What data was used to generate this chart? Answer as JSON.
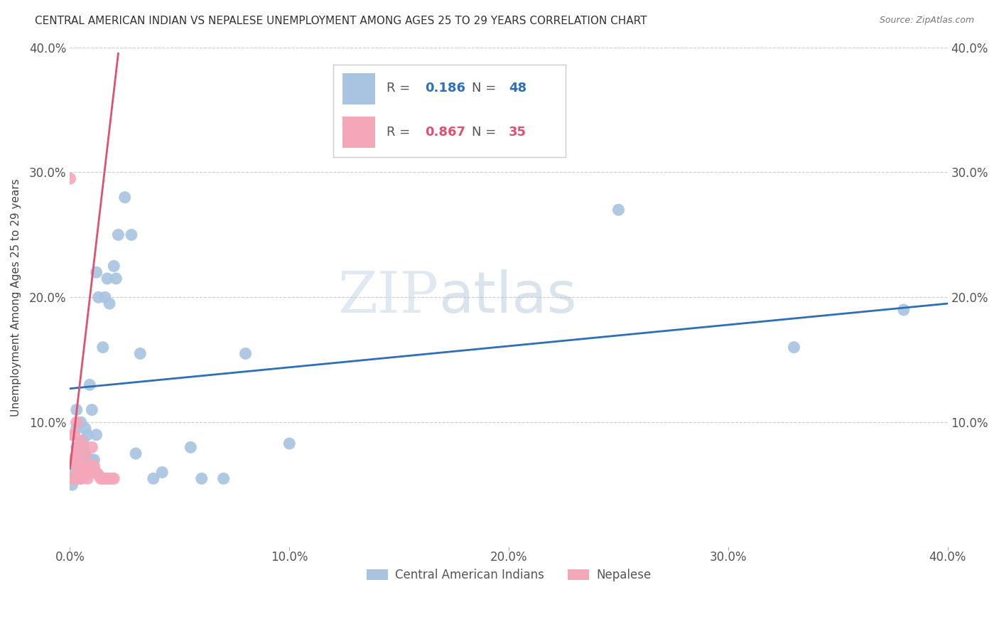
{
  "title": "CENTRAL AMERICAN INDIAN VS NEPALESE UNEMPLOYMENT AMONG AGES 25 TO 29 YEARS CORRELATION CHART",
  "source": "Source: ZipAtlas.com",
  "ylabel": "Unemployment Among Ages 25 to 29 years",
  "xlim": [
    0.0,
    0.4
  ],
  "ylim": [
    0.0,
    0.4
  ],
  "xticks": [
    0.0,
    0.1,
    0.2,
    0.3,
    0.4
  ],
  "yticks": [
    0.0,
    0.1,
    0.2,
    0.3,
    0.4
  ],
  "xticklabels": [
    "0.0%",
    "10.0%",
    "20.0%",
    "30.0%",
    "40.0%"
  ],
  "yticklabels": [
    "",
    "10.0%",
    "20.0%",
    "30.0%",
    "40.0%"
  ],
  "blue_R": 0.186,
  "blue_N": 48,
  "pink_R": 0.867,
  "pink_N": 35,
  "blue_color": "#a8c4e0",
  "pink_color": "#f4a7b9",
  "blue_line_color": "#2e6fba",
  "pink_line_color": "#e05070",
  "legend_blue_label": "Central American Indians",
  "legend_pink_label": "Nepalese",
  "watermark_zip": "ZIP",
  "watermark_atlas": "atlas",
  "blue_x": [
    0.001,
    0.002,
    0.002,
    0.003,
    0.003,
    0.003,
    0.004,
    0.004,
    0.004,
    0.005,
    0.005,
    0.005,
    0.005,
    0.006,
    0.006,
    0.007,
    0.007,
    0.008,
    0.008,
    0.009,
    0.009,
    0.01,
    0.01,
    0.011,
    0.012,
    0.012,
    0.013,
    0.015,
    0.016,
    0.017,
    0.018,
    0.02,
    0.021,
    0.022,
    0.025,
    0.028,
    0.03,
    0.032,
    0.038,
    0.042,
    0.055,
    0.06,
    0.07,
    0.08,
    0.1,
    0.25,
    0.33,
    0.38
  ],
  "blue_y": [
    0.05,
    0.06,
    0.07,
    0.08,
    0.095,
    0.11,
    0.055,
    0.065,
    0.075,
    0.055,
    0.065,
    0.08,
    0.1,
    0.065,
    0.085,
    0.075,
    0.095,
    0.07,
    0.09,
    0.06,
    0.13,
    0.07,
    0.11,
    0.07,
    0.09,
    0.22,
    0.2,
    0.16,
    0.2,
    0.215,
    0.195,
    0.225,
    0.215,
    0.25,
    0.28,
    0.25,
    0.075,
    0.155,
    0.055,
    0.06,
    0.08,
    0.055,
    0.055,
    0.155,
    0.083,
    0.27,
    0.16,
    0.19
  ],
  "pink_x": [
    0.001,
    0.001,
    0.001,
    0.002,
    0.002,
    0.002,
    0.003,
    0.003,
    0.003,
    0.003,
    0.004,
    0.004,
    0.005,
    0.005,
    0.005,
    0.006,
    0.006,
    0.007,
    0.007,
    0.008,
    0.008,
    0.009,
    0.01,
    0.01,
    0.011,
    0.012,
    0.013,
    0.014,
    0.015,
    0.016,
    0.017,
    0.018,
    0.019,
    0.02,
    0.0
  ],
  "pink_y": [
    0.055,
    0.07,
    0.09,
    0.055,
    0.07,
    0.09,
    0.055,
    0.065,
    0.075,
    0.1,
    0.06,
    0.08,
    0.055,
    0.065,
    0.085,
    0.06,
    0.08,
    0.058,
    0.073,
    0.055,
    0.065,
    0.06,
    0.065,
    0.08,
    0.065,
    0.06,
    0.058,
    0.055,
    0.055,
    0.055,
    0.055,
    0.055,
    0.055,
    0.055,
    0.295
  ],
  "background_color": "#ffffff",
  "grid_color": "#cccccc",
  "blue_line_x": [
    0.0,
    0.4
  ],
  "blue_line_y": [
    0.127,
    0.195
  ],
  "pink_line_x": [
    0.0,
    0.022
  ],
  "pink_line_y": [
    0.063,
    0.395
  ]
}
